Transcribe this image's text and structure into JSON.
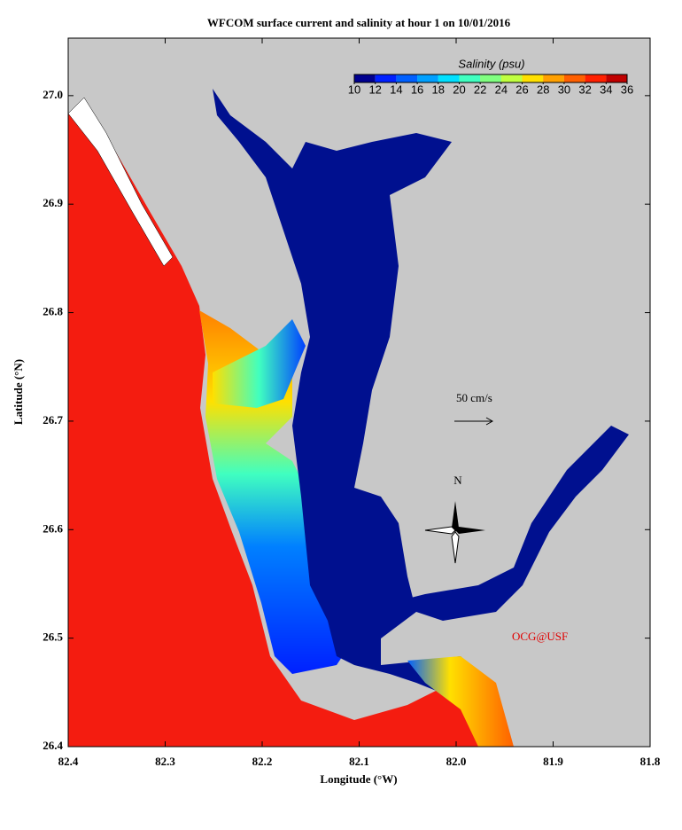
{
  "map": {
    "title": "WFCOM surface current and salinity at hour 1 on 10/01/2016",
    "xlabel": "Longitude (°W)",
    "ylabel": "Latitude (°N)",
    "xlim": [
      82.4,
      81.8
    ],
    "ylim": [
      26.4,
      27.053
    ],
    "xticks": [
      82.4,
      82.3,
      82.2,
      82.1,
      {
        "value": 82,
        "label": "82.0"
      },
      81.9,
      81.8
    ],
    "yticks": [
      26.4,
      26.5,
      26.6,
      26.7,
      26.8,
      26.9,
      {
        "value": 27,
        "label": "27.0"
      }
    ],
    "colorbar": {
      "label": "Salinity (psu)",
      "ticks": [
        10,
        12,
        14,
        16,
        18,
        20,
        22,
        24,
        26,
        28,
        30,
        32,
        34,
        36
      ],
      "colors": [
        "#00008f",
        "#0020ff",
        "#0060ff",
        "#00a0ff",
        "#00e0ff",
        "#40ffc0",
        "#80ff80",
        "#c0ff40",
        "#ffe000",
        "#ffa000",
        "#ff6000",
        "#ff2000",
        "#c00000"
      ]
    },
    "scale_label": "50 cm/s",
    "north_label": "N",
    "credit": "OCG@USF"
  }
}
